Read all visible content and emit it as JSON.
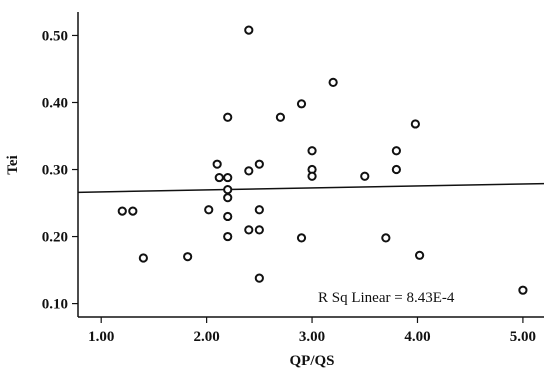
{
  "chart_data": {
    "type": "scatter",
    "xlabel": "QP/QS",
    "ylabel": "Tei",
    "xlim": [
      0.78,
      5.2
    ],
    "ylim": [
      0.08,
      0.535
    ],
    "xticks": [
      1.0,
      2.0,
      3.0,
      4.0,
      5.0
    ],
    "xtick_labels": [
      "1.00",
      "2.00",
      "3.00",
      "4.00",
      "5.00"
    ],
    "yticks": [
      0.1,
      0.2,
      0.3,
      0.4,
      0.5
    ],
    "ytick_labels": [
      "0.10",
      "0.20",
      "0.30",
      "0.40",
      "0.50"
    ],
    "grid": false,
    "annotation": "R Sq Linear = 8.43E-4",
    "fit_line": {
      "x": [
        0.78,
        5.2
      ],
      "y": [
        0.266,
        0.279
      ]
    },
    "points": [
      {
        "x": 1.2,
        "y": 0.238
      },
      {
        "x": 1.3,
        "y": 0.238
      },
      {
        "x": 1.4,
        "y": 0.168
      },
      {
        "x": 1.82,
        "y": 0.17
      },
      {
        "x": 2.02,
        "y": 0.24
      },
      {
        "x": 2.1,
        "y": 0.308
      },
      {
        "x": 2.12,
        "y": 0.288
      },
      {
        "x": 2.2,
        "y": 0.378
      },
      {
        "x": 2.2,
        "y": 0.288
      },
      {
        "x": 2.2,
        "y": 0.27
      },
      {
        "x": 2.2,
        "y": 0.258
      },
      {
        "x": 2.2,
        "y": 0.23
      },
      {
        "x": 2.2,
        "y": 0.2
      },
      {
        "x": 2.4,
        "y": 0.508
      },
      {
        "x": 2.4,
        "y": 0.298
      },
      {
        "x": 2.4,
        "y": 0.21
      },
      {
        "x": 2.5,
        "y": 0.308
      },
      {
        "x": 2.5,
        "y": 0.24
      },
      {
        "x": 2.5,
        "y": 0.21
      },
      {
        "x": 2.5,
        "y": 0.138
      },
      {
        "x": 2.7,
        "y": 0.378
      },
      {
        "x": 2.9,
        "y": 0.398
      },
      {
        "x": 2.9,
        "y": 0.198
      },
      {
        "x": 3.0,
        "y": 0.328
      },
      {
        "x": 3.0,
        "y": 0.3
      },
      {
        "x": 3.0,
        "y": 0.29
      },
      {
        "x": 3.2,
        "y": 0.43
      },
      {
        "x": 3.5,
        "y": 0.29
      },
      {
        "x": 3.7,
        "y": 0.198
      },
      {
        "x": 3.8,
        "y": 0.328
      },
      {
        "x": 3.8,
        "y": 0.3
      },
      {
        "x": 3.98,
        "y": 0.368
      },
      {
        "x": 4.02,
        "y": 0.172
      },
      {
        "x": 5.0,
        "y": 0.12
      }
    ],
    "colors": {
      "axis": "#111111",
      "marker": "#111111",
      "line": "#111111"
    }
  }
}
